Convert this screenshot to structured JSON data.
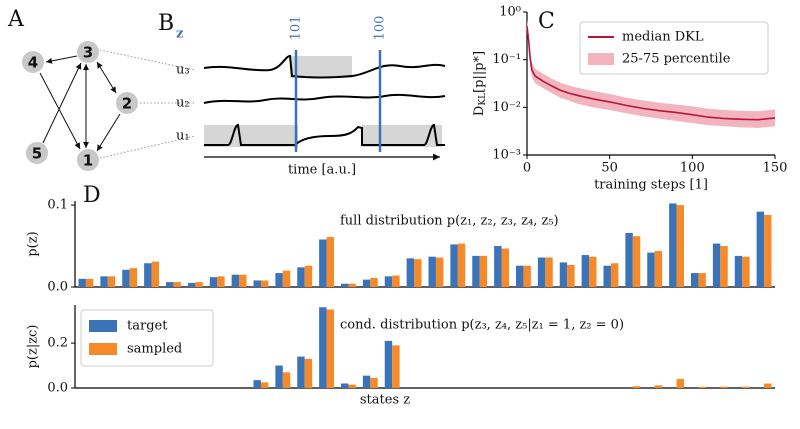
{
  "panels": {
    "a": "A",
    "b": "B",
    "b_sub": "z",
    "c": "C",
    "d": "D"
  },
  "diagram": {
    "nodes": [
      {
        "label": "1"
      },
      {
        "label": "2"
      },
      {
        "label": "3"
      },
      {
        "label": "4"
      },
      {
        "label": "5"
      }
    ]
  },
  "traces": {
    "labels": [
      "u₃",
      "u₂",
      "u₁"
    ],
    "spikes": [
      "101",
      "100"
    ],
    "xlabel": "time [a.u.]"
  },
  "chart_data": [
    {
      "type": "line",
      "log_y": true,
      "xlabel": "training steps [1]",
      "ylabel": "D",
      "ylabel_sub": "KL",
      "ylabel_tail": "[p||p*]",
      "xlim": [
        0,
        150
      ],
      "xticks": [
        0,
        50,
        100,
        150
      ],
      "ylim": [
        0.001,
        1
      ],
      "yticks": [
        {
          "value": 0.001,
          "label": "10⁻³"
        },
        {
          "value": 0.01,
          "label": "10⁻²"
        },
        {
          "value": 0.1,
          "label": "10⁻¹"
        },
        {
          "value": 1,
          "label": "10⁰"
        }
      ],
      "legend": "upper right",
      "x": [
        0,
        1,
        2,
        3,
        5,
        10,
        15,
        20,
        25,
        30,
        40,
        50,
        60,
        70,
        80,
        90,
        100,
        110,
        120,
        130,
        140,
        150
      ],
      "series": [
        {
          "name": "median DKL",
          "color": "#b5173b",
          "values": [
            0.5,
            0.25,
            0.1,
            0.06,
            0.045,
            0.035,
            0.028,
            0.023,
            0.02,
            0.018,
            0.015,
            0.013,
            0.011,
            0.0095,
            0.0085,
            0.0078,
            0.007,
            0.0062,
            0.0058,
            0.0056,
            0.0055,
            0.006
          ]
        },
        {
          "name": "25-75 percentile",
          "color": "#f3b4be",
          "lower": [
            0.4,
            0.18,
            0.07,
            0.042,
            0.032,
            0.025,
            0.02,
            0.016,
            0.014,
            0.012,
            0.01,
            0.0088,
            0.0075,
            0.0065,
            0.0058,
            0.0052,
            0.0047,
            0.0042,
            0.004,
            0.0038,
            0.0037,
            0.004
          ],
          "upper": [
            0.7,
            0.35,
            0.14,
            0.085,
            0.064,
            0.05,
            0.04,
            0.033,
            0.029,
            0.026,
            0.022,
            0.019,
            0.016,
            0.014,
            0.0125,
            0.0115,
            0.0105,
            0.0093,
            0.0088,
            0.0085,
            0.0083,
            0.009
          ]
        }
      ]
    },
    {
      "type": "bar",
      "ylabel": "p(z)",
      "annotation": "full distribution p(z₁, z₂, z₃, z₄, z₅)",
      "ylim": [
        0,
        0.105
      ],
      "yticks": [
        {
          "value": 0,
          "label": "0.0"
        },
        0.1
      ],
      "series": [
        {
          "color": "#3b73b9",
          "values": [
            0.01,
            0.013,
            0.021,
            0.029,
            0.006,
            0.005,
            0.012,
            0.015,
            0.008,
            0.017,
            0.024,
            0.058,
            0.004,
            0.009,
            0.013,
            0.035,
            0.037,
            0.052,
            0.038,
            0.05,
            0.026,
            0.036,
            0.03,
            0.039,
            0.026,
            0.066,
            0.042,
            0.102,
            0.017,
            0.053,
            0.038,
            0.092
          ]
        },
        {
          "color": "#f58a2a",
          "values": [
            0.01,
            0.013,
            0.023,
            0.031,
            0.006,
            0.006,
            0.013,
            0.015,
            0.008,
            0.02,
            0.026,
            0.061,
            0.004,
            0.011,
            0.014,
            0.034,
            0.036,
            0.053,
            0.038,
            0.047,
            0.026,
            0.036,
            0.027,
            0.037,
            0.029,
            0.062,
            0.044,
            0.1,
            0.017,
            0.05,
            0.037,
            0.088
          ]
        }
      ]
    },
    {
      "type": "bar",
      "ylabel": "p(z|zc)",
      "xlabel": "states z",
      "annotation": "cond. distribution p(z₃, z₄, z₅|z₁ = 1, z₂ = 0)",
      "ylim": [
        0,
        0.37
      ],
      "yticks": [
        {
          "value": 0,
          "label": "0.0"
        },
        0.2
      ],
      "legend": "upper left",
      "series": [
        {
          "name": "target",
          "color": "#3b73b9",
          "values": [
            0,
            0,
            0,
            0,
            0,
            0,
            0,
            0,
            0.035,
            0.1,
            0.14,
            0.36,
            0.02,
            0.055,
            0.21,
            0,
            0,
            0,
            0,
            0,
            0,
            0,
            0,
            0,
            0,
            0,
            0,
            0,
            0,
            0,
            0,
            0
          ]
        },
        {
          "name": "sampled",
          "color": "#f58a2a",
          "values": [
            0,
            0,
            0,
            0,
            0,
            0,
            0,
            0,
            0.025,
            0.07,
            0.13,
            0.35,
            0.015,
            0.045,
            0.19,
            0,
            0,
            0,
            0,
            0,
            0,
            0,
            0,
            0,
            0,
            0.008,
            0.012,
            0.04,
            0.005,
            0.006,
            0.006,
            0.02
          ]
        }
      ]
    }
  ]
}
